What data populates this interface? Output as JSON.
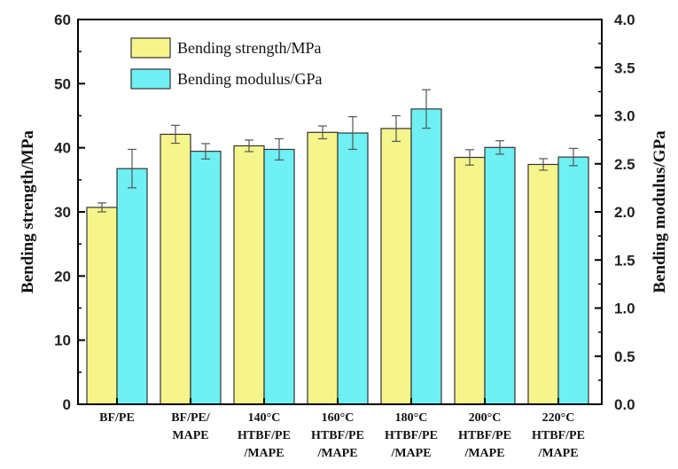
{
  "chart_data": {
    "type": "bar",
    "categories": [
      [
        "BF/PE"
      ],
      [
        "BF/PE/",
        "MAPE"
      ],
      [
        "140°C",
        "HTBF/PE",
        "/MAPE"
      ],
      [
        "160°C",
        "HTBF/PE",
        "/MAPE"
      ],
      [
        "180°C",
        "HTBF/PE",
        "/MAPE"
      ],
      [
        "200°C",
        "HTBF/PE",
        "/MAPE"
      ],
      [
        "220°C",
        "HTBF/PE",
        "/MAPE"
      ]
    ],
    "series": [
      {
        "name": "Bending strength/MPa",
        "axis": "left",
        "color": "#f5f58c",
        "values": [
          30.7,
          42.1,
          40.3,
          42.4,
          43.0,
          38.5,
          37.4
        ],
        "errors": [
          0.7,
          1.4,
          0.9,
          1.0,
          2.0,
          1.2,
          0.9
        ]
      },
      {
        "name": "Bending modulus/GPa",
        "axis": "right",
        "color": "#6ef0f4",
        "values": [
          2.45,
          2.63,
          2.65,
          2.82,
          3.07,
          2.67,
          2.57
        ],
        "errors": [
          0.2,
          0.08,
          0.11,
          0.17,
          0.2,
          0.07,
          0.09
        ]
      }
    ],
    "ylabel": "Bending strength/MPa",
    "y2label": "Bending modulus/GPa",
    "ylim": [
      0,
      60
    ],
    "y2lim": [
      0,
      4.0
    ],
    "yticks": [
      "0",
      "10",
      "20",
      "30",
      "40",
      "50",
      "60"
    ],
    "y2ticks": [
      "0.0",
      "0.5",
      "1.0",
      "1.5",
      "2.0",
      "2.5",
      "3.0",
      "3.5",
      "4.0"
    ],
    "legend_position": "top-left",
    "grid": false
  }
}
